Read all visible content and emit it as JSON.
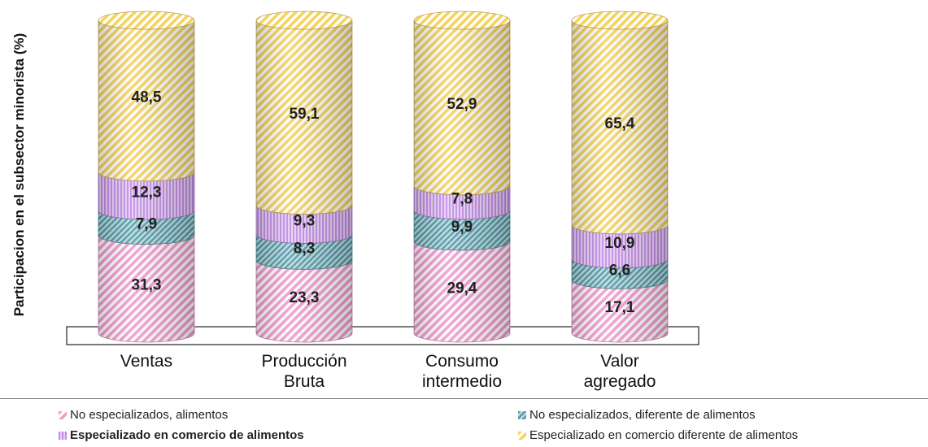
{
  "chart_data": {
    "type": "bar",
    "stacked": true,
    "style": "3d-cylinder",
    "categories": [
      [
        "Ventas"
      ],
      [
        "Producción",
        "Bruta"
      ],
      [
        "Consumo",
        "intermedio"
      ],
      [
        "Valor",
        "agregado"
      ]
    ],
    "ylabel": "Participacion en el subsector minorista (%)",
    "ylim": [
      0,
      100
    ],
    "grid": false,
    "legend_position": "bottom",
    "series": [
      {
        "name": "No especializados, alimentos",
        "color": "#f29ad2",
        "values": [
          31.3,
          23.3,
          29.4,
          17.1
        ],
        "labels": [
          "31,3",
          "23,3",
          "29,4",
          "17,1"
        ]
      },
      {
        "name": "No especializados, diferente de alimentos",
        "color": "#5aa9b8",
        "values": [
          7.9,
          8.3,
          9.9,
          6.6
        ],
        "labels": [
          "7,9",
          "8,3",
          "9,9",
          "6,6"
        ]
      },
      {
        "name": "Especializado en comercio de alimentos",
        "color": "#c48be8",
        "values": [
          12.3,
          9.3,
          7.8,
          10.9
        ],
        "labels": [
          "12,3",
          "9,3",
          "7,8",
          "10,9"
        ]
      },
      {
        "name": "Especializado en comercio diferente de alimentos",
        "color": "#f4d35e",
        "values": [
          48.5,
          59.1,
          52.9,
          65.4
        ],
        "labels": [
          "48,5",
          "59,1",
          "52,9",
          "65,4"
        ]
      }
    ]
  }
}
